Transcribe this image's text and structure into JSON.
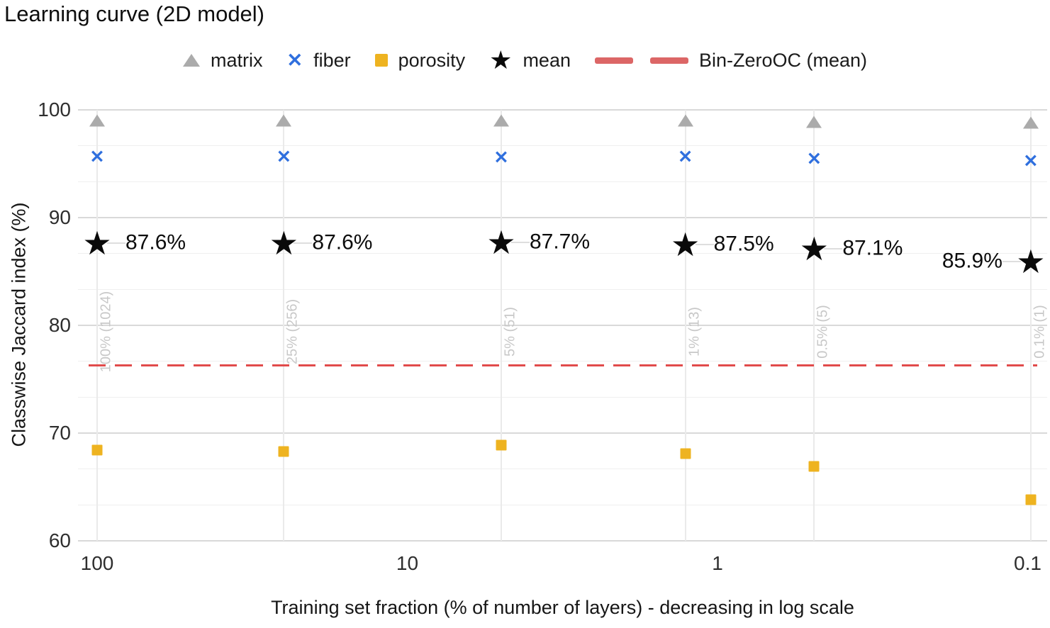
{
  "title": "Learning curve (2D model)",
  "legend": {
    "matrix": "matrix",
    "fiber": "fiber",
    "porosity": "porosity",
    "mean": "mean",
    "baseline": "Bin-ZeroOC (mean)"
  },
  "colors": {
    "matrix": "#ababab",
    "fiber": "#2f6fde",
    "porosity": "#eeb320",
    "mean": "#0a0a0a",
    "baseline": "#e14b4b",
    "baseline_legend": "#dc6666",
    "grid_major": "#d9d9d9",
    "grid_minor": "#efefef",
    "grid_vertical": "#eaeaea",
    "point_label": "#c8c8c8"
  },
  "chart_data": {
    "type": "scatter",
    "title": "Learning curve (2D model)",
    "xlabel": "Training set fraction (% of number of layers) - decreasing in log scale",
    "ylabel": "Classwise Jaccard index (%)",
    "x_scale": "log-decreasing",
    "x_ticks": [
      100,
      10,
      1,
      0.1
    ],
    "x_tick_labels": [
      "100",
      "10",
      "1",
      "0.1"
    ],
    "y_ticks": [
      100,
      90,
      80,
      70,
      60
    ],
    "y_tick_labels": [
      "100",
      "90",
      "80",
      "70",
      "60"
    ],
    "ylim": [
      60,
      100
    ],
    "y_minor_grid_step": 3.3333,
    "x": [
      100,
      25,
      4.98,
      1.27,
      0.488,
      0.0977
    ],
    "point_labels": [
      "100% (1024)",
      "25% (256)",
      "5% (51)",
      "1% (13)",
      "0.5% (5)",
      "0.1% (1)"
    ],
    "series": [
      {
        "name": "matrix",
        "marker": "triangle",
        "values": [
          99.0,
          99.0,
          99.0,
          99.0,
          98.9,
          98.8
        ]
      },
      {
        "name": "fiber",
        "marker": "x",
        "values": [
          95.6,
          95.6,
          95.5,
          95.6,
          95.4,
          95.2
        ]
      },
      {
        "name": "porosity",
        "marker": "square",
        "values": [
          68.4,
          68.3,
          68.9,
          68.1,
          66.9,
          63.8
        ]
      },
      {
        "name": "mean",
        "marker": "star",
        "values": [
          87.6,
          87.6,
          87.7,
          87.5,
          87.1,
          85.9
        ],
        "annotations": [
          "87.6%",
          "87.6%",
          "87.7%",
          "87.5%",
          "87.1%",
          "85.9%"
        ],
        "annotation_side": [
          "right",
          "right",
          "right",
          "right",
          "right",
          "left"
        ]
      }
    ],
    "baseline": {
      "name": "Bin-ZeroOC (mean)",
      "value": 76.3,
      "style": "dashed"
    },
    "legend_position": "top-center",
    "grid": true
  }
}
